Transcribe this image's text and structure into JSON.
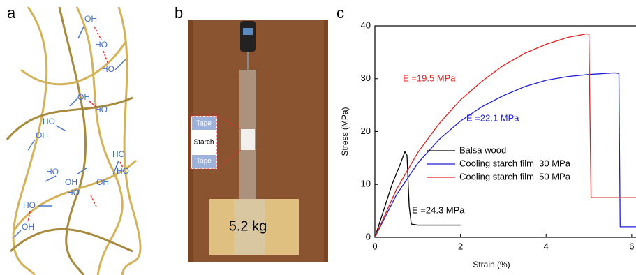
{
  "panel_a": {
    "label": "a",
    "groups": [
      "OH",
      "HO",
      "HO",
      "OH",
      "HO",
      "HO",
      "OH",
      "HO",
      "HO",
      "HO",
      "OH",
      "OH",
      "HO",
      "HO",
      "OH"
    ]
  },
  "panel_b": {
    "label": "b",
    "tape_top": "Tape",
    "starch": "Starch",
    "tape_bottom": "Tape",
    "mass": "5.2 kg"
  },
  "panel_c": {
    "label": "c"
  },
  "chart_data": {
    "type": "line",
    "xlabel": "Strain (%)",
    "ylabel": "Stress (MPa)",
    "xlim": [
      0,
      6.1
    ],
    "ylim": [
      0,
      40
    ],
    "xticks": [
      0,
      2,
      4,
      6
    ],
    "yticks": [
      0,
      10,
      20,
      30,
      40
    ],
    "legend": "center",
    "series": [
      {
        "name": "Balsa wood",
        "color": "#000000",
        "x": [
          0,
          0.2,
          0.4,
          0.6,
          0.7,
          0.75,
          0.8,
          0.85,
          1,
          2
        ],
        "values": [
          0,
          5,
          10,
          14,
          16.2,
          15.5,
          6,
          2.5,
          2.3,
          2.3
        ]
      },
      {
        "name": "Cooling starch film_30 MPa",
        "color": "#1f1fd6",
        "x": [
          0,
          0.5,
          1,
          1.5,
          2,
          2.5,
          3,
          3.5,
          4,
          4.5,
          5,
          5.6,
          5.7,
          5.73,
          6.1
        ],
        "values": [
          0,
          8,
          14,
          18.5,
          22,
          24.7,
          26.8,
          28.5,
          29.7,
          30.4,
          30.8,
          31.1,
          31,
          2,
          2
        ]
      },
      {
        "name": "Cooling starch film_50 MPa",
        "color": "#e02020",
        "x": [
          0,
          0.5,
          1,
          1.5,
          2,
          2.5,
          3,
          3.5,
          4,
          4.5,
          4.95,
          5,
          5.05,
          6.1
        ],
        "values": [
          0,
          9,
          16,
          21.5,
          26,
          29.5,
          32.5,
          34.8,
          36.5,
          37.8,
          38.5,
          38.4,
          7.5,
          7.5
        ]
      }
    ],
    "annotations": [
      {
        "text": "E =19.5 MPa",
        "color": "#e02020"
      },
      {
        "text": "E =22.1 MPa",
        "color": "#1f1fd6"
      },
      {
        "text": "E =24.3 MPa",
        "color": "#000000"
      }
    ]
  }
}
